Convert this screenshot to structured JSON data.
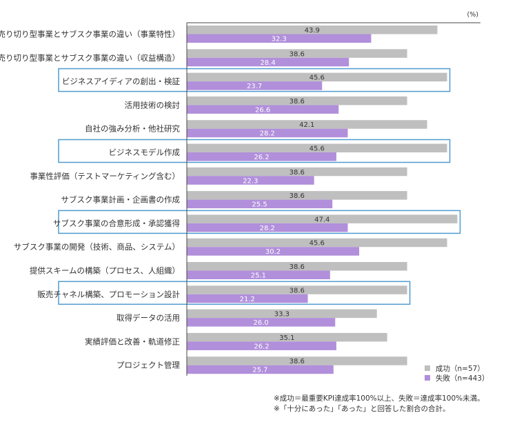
{
  "chart_data": {
    "type": "bar",
    "orientation": "horizontal",
    "unit": "(%)",
    "categories": [
      "売り切り型事業とサブスク事業の違い（事業特性）",
      "売り切り型事業とサブスク事業の違い（収益構造）",
      "ビジネスアイディアの創出・検証",
      "活用技術の検討",
      "自社の強み分析・他社研究",
      "ビジネスモデル作成",
      "事業性評価（テストマーケティング含む）",
      "サブスク事業計画・企画書の作成",
      "サブスク事業の合意形成・承認獲得",
      "サブスク事業の開発（技術、商品、システム）",
      "提供スキームの構築（プロセス、人組織）",
      "販売チャネル構築、プロモーション設計",
      "取得データの活用",
      "実績評価と改善・軌道修正",
      "プロジェクト管理"
    ],
    "series": [
      {
        "name": "成功（n=57）",
        "color": "#bfbfbf",
        "values": [
          43.9,
          38.6,
          45.6,
          38.6,
          42.1,
          45.6,
          38.6,
          38.6,
          47.4,
          45.6,
          38.6,
          38.6,
          33.3,
          35.1,
          38.6
        ]
      },
      {
        "name": "失敗（n=443）",
        "color": "#b18fdb",
        "values": [
          32.3,
          28.4,
          23.7,
          26.6,
          28.2,
          26.2,
          22.3,
          25.5,
          28.2,
          30.2,
          25.1,
          21.2,
          26.0,
          26.2,
          25.7
        ]
      }
    ],
    "value_labels": {
      "success": [
        "43.9",
        "38.6",
        "45.6",
        "38.6",
        "42.1",
        "45.6",
        "38.6",
        "38.6",
        "47.4",
        "45.6",
        "38.6",
        "38.6",
        "33.3",
        "35.1",
        "38.6"
      ],
      "failure": [
        "32.3",
        "28.4",
        "23.7",
        "26.6",
        "28.2",
        "26.2",
        "22.3",
        "25.5",
        "28.2",
        "30.2",
        "25.1",
        "21.2",
        "26.0",
        "26.2",
        "25.7"
      ]
    },
    "highlighted_categories": [
      2,
      5,
      8,
      11
    ],
    "highlight_color": "#4f9bd0",
    "xlim": [
      0,
      47.4
    ],
    "grid": false,
    "legend_position": "bottom-right"
  },
  "notes": [
    "※成功＝最重要KPI達成率100%以上、失敗＝達成率100%未満。",
    "※「十分にあった」「あった」と回答した割合の合計。"
  ]
}
